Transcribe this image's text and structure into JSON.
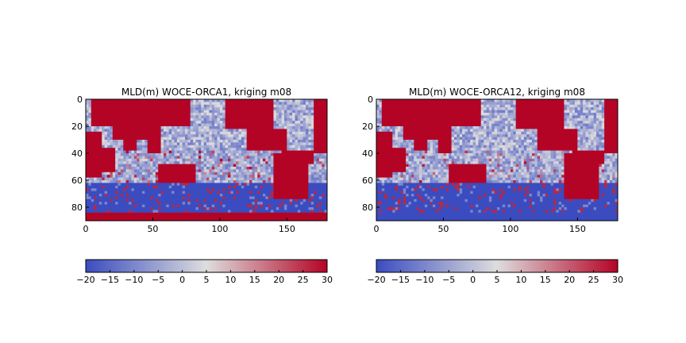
{
  "chart_data": [
    {
      "type": "heatmap",
      "title": "MLD(m) WOCE-ORCA1, kriging m08",
      "xlabel": "",
      "ylabel": "",
      "xlim": [
        0,
        180
      ],
      "ylim": [
        90,
        0
      ],
      "x_ticks": [
        "0",
        "50",
        "100",
        "150"
      ],
      "y_ticks": [
        "0",
        "20",
        "40",
        "60",
        "80"
      ],
      "colorbar": {
        "orientation": "horizontal",
        "range": [
          -20,
          30
        ],
        "ticks": [
          "−20",
          "−15",
          "−10",
          "−5",
          "0",
          "5",
          "10",
          "15",
          "20",
          "25",
          "30"
        ],
        "colormap": "coolwarm"
      },
      "land_value": 30,
      "south_edge_value": 30,
      "grid": false
    },
    {
      "type": "heatmap",
      "title": "MLD(m) WOCE-ORCA12, kriging m08",
      "xlabel": "",
      "ylabel": "",
      "xlim": [
        0,
        180
      ],
      "ylim": [
        90,
        0
      ],
      "x_ticks": [
        "0",
        "50",
        "100",
        "150"
      ],
      "y_ticks": [
        "0",
        "20",
        "40",
        "60",
        "80"
      ],
      "colorbar": {
        "orientation": "horizontal",
        "range": [
          -20,
          30
        ],
        "ticks": [
          "−20",
          "−15",
          "−10",
          "−5",
          "0",
          "5",
          "10",
          "15",
          "20",
          "25",
          "30"
        ],
        "colormap": "coolwarm"
      },
      "land_value": 30,
      "south_edge_value": -20,
      "grid": false
    }
  ],
  "colors": {
    "cmap_min": "#3b4cc0",
    "cmap_mid": "#dddddd",
    "cmap_max": "#b40426"
  }
}
